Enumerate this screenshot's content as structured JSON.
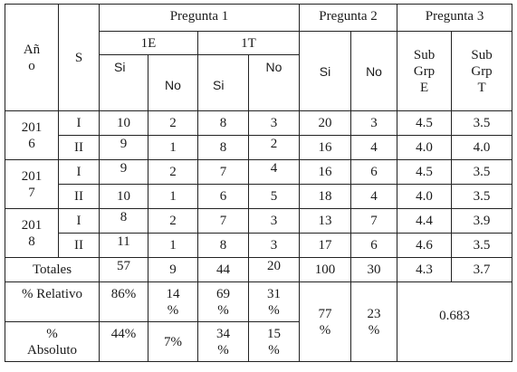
{
  "table": {
    "headers": {
      "anio": "Añ o",
      "s": "S",
      "pregunta1": "Pregunta 1",
      "pregunta2": "Pregunta 2",
      "pregunta3": "Pregunta 3",
      "g1e": "1E",
      "g1t": "1T",
      "si": "Si",
      "no": "No",
      "subgrp_e": "Sub Grp E",
      "subgrp_t": "Sub Grp T"
    },
    "years": [
      "201 6",
      "201 7",
      "201 8"
    ],
    "rows": [
      {
        "s": "I",
        "e_si": "10",
        "e_no": "2",
        "t_si": "8",
        "t_no": "3",
        "p2_si": "20",
        "p2_no": "3",
        "sub_e": "4.5",
        "sub_t": "3.5"
      },
      {
        "s": "II",
        "e_si": "9",
        "e_no": "1",
        "t_si": "8",
        "t_no": "2",
        "p2_si": "16",
        "p2_no": "4",
        "sub_e": "4.0",
        "sub_t": "4.0"
      },
      {
        "s": "I",
        "e_si": "9",
        "e_no": "2",
        "t_si": "7",
        "t_no": "4",
        "p2_si": "16",
        "p2_no": "6",
        "sub_e": "4.5",
        "sub_t": "3.5"
      },
      {
        "s": "II",
        "e_si": "10",
        "e_no": "1",
        "t_si": "6",
        "t_no": "5",
        "p2_si": "18",
        "p2_no": "4",
        "sub_e": "4.0",
        "sub_t": "3.5"
      },
      {
        "s": "I",
        "e_si": "8",
        "e_no": "2",
        "t_si": "7",
        "t_no": "3",
        "p2_si": "13",
        "p2_no": "7",
        "sub_e": "4.4",
        "sub_t": "3.9"
      },
      {
        "s": "II",
        "e_si": "11",
        "e_no": "1",
        "t_si": "8",
        "t_no": "3",
        "p2_si": "17",
        "p2_no": "6",
        "sub_e": "4.6",
        "sub_t": "3.5"
      }
    ],
    "totals": {
      "label": "Totales",
      "e_si": "57",
      "e_no": "9",
      "t_si": "44",
      "t_no": "20",
      "p2_si": "100",
      "p2_no": "30",
      "sub_e": "4.3",
      "sub_t": "3.7"
    },
    "relativo": {
      "label": "% Relativo",
      "e_si": "86%",
      "e_no": "14 %",
      "t_si": "69 %",
      "t_no": "31 %",
      "p2_si": "77 %",
      "p2_no": "23 %",
      "p3": "0.683"
    },
    "absoluto": {
      "label": "% Absoluto",
      "e_si": "44%",
      "e_no": "7%",
      "t_si": "34 %",
      "t_no": "15 %"
    }
  }
}
